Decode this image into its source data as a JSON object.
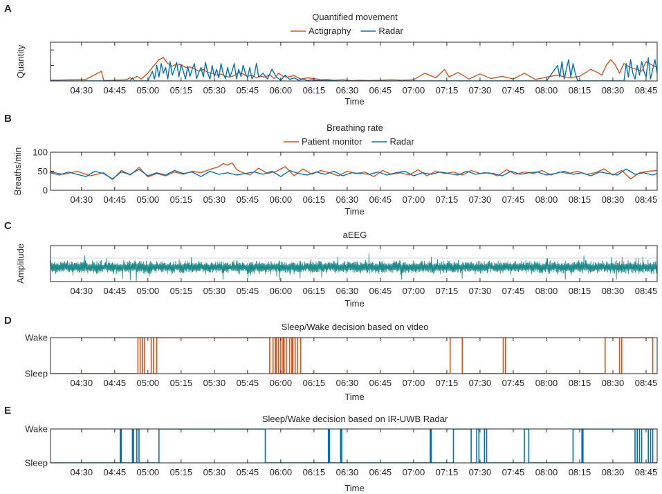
{
  "colors": {
    "actigraphy": "#d95319",
    "radar": "#0072bd",
    "aeeg": "#1b8a8a",
    "patient_monitor": "#d95319",
    "axis": "#262626",
    "grid": "#d9d9d9"
  },
  "chart_data": [
    {
      "panel": "A",
      "type": "line",
      "title": "Quantified movement",
      "xlabel": "Time",
      "ylabel": "Quantity",
      "x_start": "04:16",
      "x_end": "08:50",
      "xlim_minutes": [
        256,
        530
      ],
      "ylim": [
        0,
        1
      ],
      "yticks": [
        0,
        0.4,
        0.8,
        1
      ],
      "ytick_labels": [],
      "xtick_labels": [
        "04:30",
        "04:45",
        "05:00",
        "05:15",
        "05:30",
        "05:45",
        "06:00",
        "06:15",
        "06:30",
        "06:45",
        "07:00",
        "07:15",
        "07:30",
        "07:45",
        "08:00",
        "08:15",
        "08:30",
        "08:45"
      ],
      "legend": [
        "Actigraphy",
        "Radar"
      ],
      "legend_loc": "top-center",
      "series": [
        {
          "name": "Actigraphy",
          "color_key": "actigraphy",
          "x": [
            256,
            272,
            279,
            280,
            281,
            290,
            292,
            293,
            295,
            297,
            300,
            302,
            305,
            307,
            309,
            311,
            313,
            315,
            317,
            319,
            321,
            323,
            325,
            327,
            329,
            331,
            333,
            335,
            337,
            339,
            341,
            343,
            345,
            347,
            349,
            351,
            353,
            355,
            357,
            359,
            361,
            363,
            366,
            369,
            372,
            375,
            378,
            381,
            384,
            388,
            392,
            396,
            400,
            405,
            410,
            415,
            420,
            425,
            430,
            434,
            436,
            440,
            445,
            450,
            455,
            460,
            465,
            470,
            475,
            480,
            485,
            490,
            495,
            500,
            503,
            505,
            507,
            509,
            511,
            513,
            515,
            517,
            519,
            521,
            523,
            525,
            528,
            530
          ],
          "y": [
            0.02,
            0.04,
            0.25,
            0.02,
            0.01,
            0.03,
            0.08,
            0.05,
            0.12,
            0.05,
            0.2,
            0.35,
            0.55,
            0.6,
            0.45,
            0.38,
            0.44,
            0.42,
            0.35,
            0.36,
            0.31,
            0.25,
            0.3,
            0.22,
            0.2,
            0.15,
            0.18,
            0.12,
            0.1,
            0.14,
            0.22,
            0.18,
            0.12,
            0.15,
            0.08,
            0.12,
            0.1,
            0.16,
            0.06,
            0.2,
            0.12,
            0.1,
            0.14,
            0.05,
            0.08,
            0.06,
            0.03,
            0.04,
            0.02,
            0.03,
            0.01,
            0.02,
            0.01,
            0.02,
            0.03,
            0.02,
            0.03,
            0.2,
            0.08,
            0.3,
            0.1,
            0.22,
            0.05,
            0.18,
            0.06,
            0.12,
            0.05,
            0.2,
            0.04,
            0.1,
            0.15,
            0.08,
            0.12,
            0.3,
            0.22,
            0.15,
            0.4,
            0.55,
            0.42,
            0.2,
            0.45,
            0.38,
            0.32,
            0.3,
            0.25,
            0.5,
            0.4,
            0.35
          ]
        },
        {
          "name": "Radar",
          "color_key": "radar",
          "x": [
            256,
            285,
            292,
            293,
            294,
            300,
            302,
            303,
            304,
            305,
            306,
            307,
            308,
            309,
            310,
            311,
            312,
            313,
            314,
            315,
            316,
            317,
            318,
            319,
            320,
            321,
            322,
            323,
            324,
            325,
            326,
            327,
            328,
            329,
            330,
            331,
            332,
            333,
            334,
            335,
            336,
            337,
            338,
            339,
            340,
            341,
            342,
            343,
            344,
            345,
            346,
            347,
            348,
            349,
            350,
            352,
            354,
            356,
            358,
            360,
            362,
            364,
            366,
            368,
            370,
            372,
            374,
            376,
            378,
            380,
            382,
            385,
            390,
            400,
            420,
            440,
            450,
            460,
            470,
            480,
            485,
            486,
            487,
            488,
            489,
            490,
            491,
            492,
            493,
            494,
            495,
            500,
            505,
            510,
            515,
            516,
            517,
            518,
            519,
            520,
            521,
            522,
            523,
            524,
            525,
            526,
            527,
            528,
            529,
            530
          ],
          "y": [
            0,
            0,
            0,
            0.08,
            0,
            0,
            0.25,
            0.05,
            0.4,
            0.1,
            0.45,
            0.2,
            0.35,
            0.05,
            0.5,
            0.15,
            0.3,
            0.48,
            0.1,
            0.42,
            0.25,
            0.05,
            0.38,
            0.12,
            0.3,
            0.45,
            0.06,
            0.22,
            0.35,
            0.1,
            0.48,
            0.2,
            0.05,
            0.4,
            0.12,
            0.3,
            0.08,
            0.45,
            0.18,
            0.06,
            0.35,
            0.1,
            0.25,
            0.45,
            0.05,
            0.3,
            0.12,
            0.4,
            0.2,
            0.08,
            0.35,
            0.05,
            0.15,
            0.45,
            0.1,
            0.2,
            0.05,
            0.3,
            0.1,
            0.02,
            0.15,
            0.04,
            0.08,
            0.02,
            0.05,
            0.01,
            0.03,
            0.01,
            0.02,
            0.01,
            0.01,
            0,
            0,
            0,
            0,
            0,
            0,
            0,
            0,
            0,
            0.4,
            0.1,
            0.5,
            0.05,
            0.3,
            0.55,
            0.1,
            0.45,
            0.2,
            0.02,
            0,
            0,
            0,
            0,
            0,
            0.45,
            0.1,
            0.55,
            0.2,
            0.05,
            0.4,
            0.15,
            0.5,
            0.25,
            0.1,
            0.6,
            0.05,
            0.3,
            0.55,
            0.2
          ]
        }
      ]
    },
    {
      "panel": "B",
      "type": "line",
      "title": "Breathing rate",
      "xlabel": "Time",
      "ylabel": "Breaths/min",
      "xlim_minutes": [
        256,
        530
      ],
      "ylim": [
        0,
        100
      ],
      "yticks": [
        0,
        50,
        100
      ],
      "ytick_labels": [
        "0",
        "50",
        "100"
      ],
      "xtick_labels": [
        "04:30",
        "04:45",
        "05:00",
        "05:15",
        "05:30",
        "05:45",
        "06:00",
        "06:15",
        "06:30",
        "06:45",
        "07:00",
        "07:15",
        "07:30",
        "07:45",
        "08:00",
        "08:15",
        "08:30",
        "08:45"
      ],
      "legend": [
        "Patient monitor",
        "Radar"
      ],
      "legend_loc": "top-center",
      "series": [
        {
          "name": "Patient monitor",
          "color_key": "patient_monitor",
          "x": [
            256,
            262,
            268,
            274,
            280,
            284,
            288,
            292,
            296,
            300,
            304,
            308,
            312,
            316,
            320,
            324,
            328,
            332,
            334,
            336,
            338,
            340,
            342,
            346,
            350,
            354,
            358,
            362,
            366,
            370,
            374,
            378,
            382,
            386,
            390,
            394,
            398,
            402,
            406,
            410,
            414,
            418,
            422,
            426,
            430,
            434,
            438,
            442,
            446,
            450,
            454,
            458,
            462,
            466,
            470,
            474,
            478,
            482,
            486,
            490,
            494,
            498,
            502,
            506,
            510,
            514,
            518,
            522,
            526,
            530
          ],
          "y": [
            48,
            42,
            50,
            38,
            46,
            28,
            52,
            40,
            60,
            35,
            44,
            38,
            48,
            42,
            50,
            46,
            55,
            62,
            70,
            66,
            72,
            55,
            48,
            40,
            58,
            44,
            50,
            62,
            38,
            56,
            42,
            52,
            46,
            38,
            50,
            44,
            48,
            36,
            52,
            42,
            46,
            40,
            54,
            38,
            50,
            44,
            48,
            40,
            52,
            44,
            46,
            38,
            54,
            42,
            48,
            44,
            52,
            40,
            48,
            44,
            50,
            42,
            46,
            56,
            40,
            52,
            30,
            46,
            50,
            52
          ]
        },
        {
          "name": "Radar",
          "color_key": "radar",
          "x": [
            256,
            260,
            264,
            268,
            272,
            276,
            280,
            284,
            288,
            292,
            296,
            300,
            304,
            308,
            312,
            316,
            320,
            324,
            328,
            332,
            336,
            340,
            344,
            348,
            352,
            356,
            360,
            364,
            368,
            372,
            376,
            380,
            384,
            388,
            392,
            396,
            400,
            404,
            408,
            412,
            416,
            420,
            424,
            428,
            432,
            436,
            440,
            444,
            448,
            452,
            456,
            460,
            464,
            468,
            472,
            476,
            480,
            484,
            488,
            492,
            496,
            500,
            504,
            508,
            512,
            516,
            520,
            524,
            528,
            530
          ],
          "y": [
            46,
            40,
            48,
            42,
            36,
            50,
            44,
            30,
            48,
            42,
            55,
            38,
            46,
            40,
            52,
            44,
            48,
            36,
            50,
            42,
            46,
            40,
            44,
            48,
            42,
            50,
            36,
            52,
            44,
            40,
            48,
            42,
            50,
            38,
            46,
            44,
            42,
            48,
            40,
            46,
            50,
            38,
            46,
            42,
            48,
            44,
            40,
            50,
            42,
            46,
            44,
            38,
            50,
            42,
            46,
            48,
            40,
            44,
            50,
            42,
            46,
            38,
            48,
            44,
            40,
            56,
            42,
            46,
            40,
            44
          ]
        }
      ]
    },
    {
      "panel": "C",
      "type": "line",
      "title": "aEEG",
      "xlabel": "Time",
      "ylabel": "Amplitude",
      "xlim_minutes": [
        256,
        530
      ],
      "ylim": [
        0,
        1
      ],
      "ytick_labels": [],
      "xtick_labels": [
        "04:30",
        "04:45",
        "05:00",
        "05:15",
        "05:30",
        "05:45",
        "06:00",
        "06:15",
        "06:30",
        "06:45",
        "07:00",
        "07:15",
        "07:30",
        "07:45",
        "08:00",
        "08:15",
        "08:30",
        "08:45"
      ],
      "series": [
        {
          "name": "aEEG",
          "color_key": "aeeg",
          "band_center": 0.4,
          "band_halfwidth": 0.15
        }
      ]
    },
    {
      "panel": "D",
      "type": "line",
      "title": "Sleep/Wake decision based on video",
      "xlabel": "Time",
      "ylabel": "",
      "xlim_minutes": [
        256,
        530
      ],
      "ylim": [
        0,
        1
      ],
      "ytick_labels": [
        "Sleep",
        "Wake"
      ],
      "xtick_labels": [
        "04:30",
        "04:45",
        "05:00",
        "05:15",
        "05:30",
        "05:45",
        "06:00",
        "06:15",
        "06:30",
        "06:45",
        "07:00",
        "07:15",
        "07:30",
        "07:45",
        "08:00",
        "08:15",
        "08:30",
        "08:45"
      ],
      "series": [
        {
          "name": "Video",
          "color_key": "actigraphy",
          "wake_intervals": [
            [
              295.5,
              296.5
            ],
            [
              297.5,
              298.5
            ],
            [
              301.5,
              302.5
            ],
            [
              304,
              355
            ],
            [
              356.5,
              357.5
            ],
            [
              358,
              359
            ],
            [
              360,
              361
            ],
            [
              361.5,
              362.5
            ],
            [
              364,
              365
            ],
            [
              365.5,
              366.5
            ],
            [
              367.5,
              369
            ],
            [
              436.5,
              442
            ],
            [
              460.5,
              461.5
            ],
            [
              506.5,
              513
            ],
            [
              514,
              528
            ]
          ]
        }
      ]
    },
    {
      "panel": "E",
      "type": "line",
      "title": "Sleep/Wake decision based on IR-UWB Radar",
      "xlabel": "Time",
      "ylabel": "",
      "xlim_minutes": [
        256,
        530
      ],
      "ylim": [
        0,
        1
      ],
      "ytick_labels": [
        "Sleep",
        "Wake"
      ],
      "xtick_labels": [
        "04:30",
        "04:45",
        "05:00",
        "05:15",
        "05:30",
        "05:45",
        "06:00",
        "06:15",
        "06:30",
        "06:45",
        "07:00",
        "07:15",
        "07:30",
        "07:45",
        "08:00",
        "08:15",
        "08:30",
        "08:45"
      ],
      "series": [
        {
          "name": "IR-UWB Radar",
          "color_key": "radar",
          "wake_intervals": [
            [
              287.5,
              288
            ],
            [
              293,
              293.5
            ],
            [
              295,
              296
            ],
            [
              305,
              353
            ],
            [
              381.5,
              382
            ],
            [
              387,
              387.5
            ],
            [
              427.5,
              428
            ],
            [
              438,
              446
            ],
            [
              448.5,
              449.5
            ],
            [
              452,
              453
            ],
            [
              470,
              472
            ],
            [
              492,
              496
            ],
            [
              496.5,
              520
            ],
            [
              521,
              522
            ],
            [
              523,
              526
            ],
            [
              527,
              528
            ]
          ]
        }
      ]
    }
  ]
}
